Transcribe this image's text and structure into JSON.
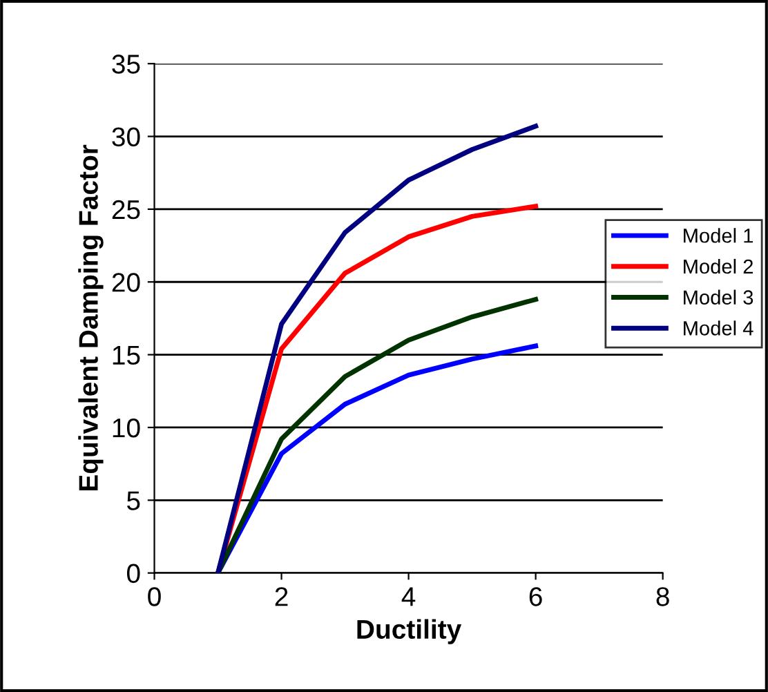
{
  "chart_data": {
    "type": "line",
    "xlabel": "Ductility",
    "ylabel": "Equivalent Damping Factor",
    "x": [
      1,
      2,
      3,
      4,
      5,
      6
    ],
    "series": [
      {
        "name": "Model 1",
        "color": "#0000ff",
        "values": [
          0,
          8.2,
          11.6,
          13.6,
          14.7,
          15.6
        ]
      },
      {
        "name": "Model 2",
        "color": "#ff0000",
        "values": [
          0,
          15.4,
          20.6,
          23.1,
          24.5,
          25.2
        ]
      },
      {
        "name": "Model 3",
        "color": "#003300",
        "values": [
          0,
          9.2,
          13.5,
          16,
          17.6,
          18.8
        ]
      },
      {
        "name": "Model 4",
        "color": "#000080",
        "values": [
          0,
          17.1,
          23.4,
          27,
          29.1,
          30.7
        ]
      }
    ],
    "xlim": [
      0,
      8
    ],
    "xticks": [
      0,
      2,
      4,
      6,
      8
    ],
    "ylim": [
      0,
      35
    ],
    "yticks": [
      0,
      5,
      10,
      15,
      20,
      25,
      30,
      35
    ],
    "grid": "y",
    "legend": "right",
    "marker": "none",
    "line_style": "solid"
  }
}
